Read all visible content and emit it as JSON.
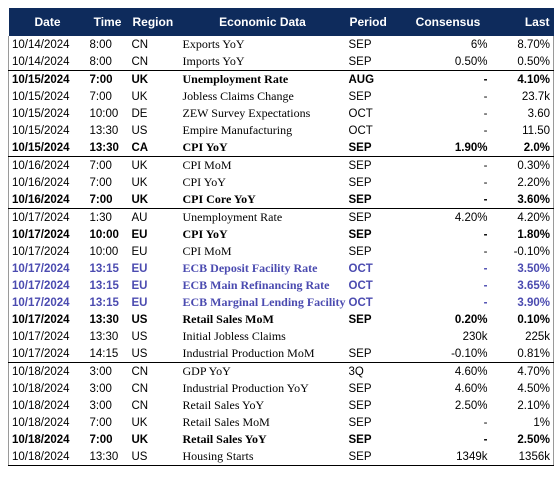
{
  "headers": {
    "date": "Date",
    "time": "Time",
    "region": "Region",
    "data": "Economic Data",
    "period": "Period",
    "consensus": "Consensus",
    "last": "Last"
  },
  "rows": [
    {
      "date": "10/14/2024",
      "time": "8:00",
      "region": "CN",
      "data": "Exports YoY",
      "period": "SEP",
      "consensus": "6%",
      "last": "8.70%",
      "style": "normal"
    },
    {
      "date": "10/14/2024",
      "time": "8:00",
      "region": "CN",
      "data": "Imports YoY",
      "period": "SEP",
      "consensus": "0.50%",
      "last": "0.50%",
      "style": "normal",
      "sep": true
    },
    {
      "date": "10/15/2024",
      "time": "7:00",
      "region": "UK",
      "data": "Unemployment Rate",
      "period": "AUG",
      "consensus": "-",
      "last": "4.10%",
      "style": "bold"
    },
    {
      "date": "10/15/2024",
      "time": "7:00",
      "region": "UK",
      "data": "Jobless Claims Change",
      "period": "SEP",
      "consensus": "-",
      "last": "23.7k",
      "style": "normal"
    },
    {
      "date": "10/15/2024",
      "time": "10:00",
      "region": "DE",
      "data": "ZEW Survey Expectations",
      "period": "OCT",
      "consensus": "-",
      "last": "3.60",
      "style": "normal"
    },
    {
      "date": "10/15/2024",
      "time": "13:30",
      "region": "US",
      "data": "Empire Manufacturing",
      "period": "OCT",
      "consensus": "-",
      "last": "11.50",
      "style": "normal"
    },
    {
      "date": "10/15/2024",
      "time": "13:30",
      "region": "CA",
      "data": "CPI YoY",
      "period": "SEP",
      "consensus": "1.90%",
      "last": "2.0%",
      "style": "bold",
      "sep": true
    },
    {
      "date": "10/16/2024",
      "time": "7:00",
      "region": "UK",
      "data": "CPI MoM",
      "period": "SEP",
      "consensus": "-",
      "last": "0.30%",
      "style": "normal"
    },
    {
      "date": "10/16/2024",
      "time": "7:00",
      "region": "UK",
      "data": "CPI YoY",
      "period": "SEP",
      "consensus": "-",
      "last": "2.20%",
      "style": "normal"
    },
    {
      "date": "10/16/2024",
      "time": "7:00",
      "region": "UK",
      "data": "CPI Core YoY",
      "period": "SEP",
      "consensus": "-",
      "last": "3.60%",
      "style": "bold",
      "sep": true
    },
    {
      "date": "10/17/2024",
      "time": "1:30",
      "region": "AU",
      "data": "Unemployment Rate",
      "period": "SEP",
      "consensus": "4.20%",
      "last": "4.20%",
      "style": "normal"
    },
    {
      "date": "10/17/2024",
      "time": "10:00",
      "region": "EU",
      "data": "CPI YoY",
      "period": "SEP",
      "consensus": "-",
      "last": "1.80%",
      "style": "bold"
    },
    {
      "date": "10/17/2024",
      "time": "10:00",
      "region": "EU",
      "data": "CPI MoM",
      "period": "SEP",
      "consensus": "-",
      "last": "-0.10%",
      "style": "normal"
    },
    {
      "date": "10/17/2024",
      "time": "13:15",
      "region": "EU",
      "data": "ECB Deposit Facility Rate",
      "period": "OCT",
      "consensus": "-",
      "last": "3.50%",
      "style": "purple"
    },
    {
      "date": "10/17/2024",
      "time": "13:15",
      "region": "EU",
      "data": "ECB Main Refinancing Rate",
      "period": "OCT",
      "consensus": "-",
      "last": "3.65%",
      "style": "purple"
    },
    {
      "date": "10/17/2024",
      "time": "13:15",
      "region": "EU",
      "data": "ECB Marginal Lending Facility",
      "period": "OCT",
      "consensus": "-",
      "last": "3.90%",
      "style": "purple"
    },
    {
      "date": "10/17/2024",
      "time": "13:30",
      "region": "US",
      "data": "Retail Sales MoM",
      "period": "SEP",
      "consensus": "0.20%",
      "last": "0.10%",
      "style": "bold"
    },
    {
      "date": "10/17/2024",
      "time": "13:30",
      "region": "US",
      "data": "Initial Jobless Claims",
      "period": "",
      "consensus": "230k",
      "last": "225k",
      "style": "normal"
    },
    {
      "date": "10/17/2024",
      "time": "14:15",
      "region": "US",
      "data": "Industrial Production MoM",
      "period": "SEP",
      "consensus": "-0.10%",
      "last": "0.81%",
      "style": "normal",
      "sep": true
    },
    {
      "date": "10/18/2024",
      "time": "3:00",
      "region": "CN",
      "data": "GDP YoY",
      "period": "3Q",
      "consensus": "4.60%",
      "last": "4.70%",
      "style": "normal"
    },
    {
      "date": "10/18/2024",
      "time": "3:00",
      "region": "CN",
      "data": "Industrial Production YoY",
      "period": "SEP",
      "consensus": "4.60%",
      "last": "4.50%",
      "style": "normal"
    },
    {
      "date": "10/18/2024",
      "time": "3:00",
      "region": "CN",
      "data": "Retail Sales YoY",
      "period": "SEP",
      "consensus": "2.50%",
      "last": "2.10%",
      "style": "normal"
    },
    {
      "date": "10/18/2024",
      "time": "7:00",
      "region": "UK",
      "data": "Retail Sales  MoM",
      "period": "SEP",
      "consensus": "-",
      "last": "1%",
      "style": "normal"
    },
    {
      "date": "10/18/2024",
      "time": "7:00",
      "region": "UK",
      "data": "Retail Sales YoY",
      "period": "SEP",
      "consensus": "-",
      "last": "2.50%",
      "style": "bold"
    },
    {
      "date": "10/18/2024",
      "time": "13:30",
      "region": "US",
      "data": "Housing Starts",
      "period": "SEP",
      "consensus": "1349k",
      "last": "1356k",
      "style": "normal"
    }
  ]
}
